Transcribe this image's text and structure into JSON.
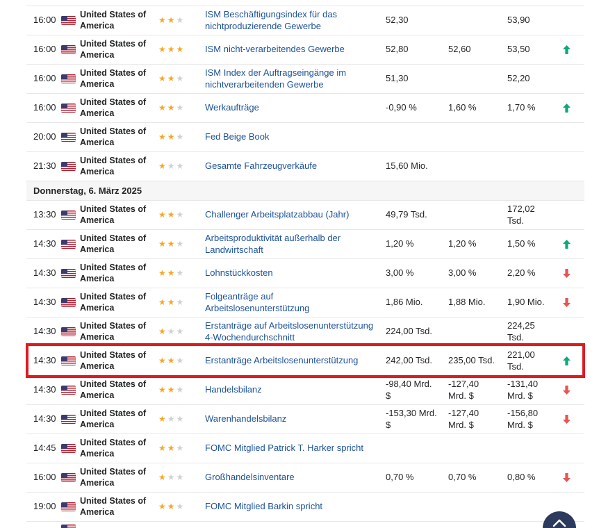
{
  "colors": {
    "text": "#232526",
    "accent_link": "#1c5298",
    "divider": "#e7e7e7",
    "section_bg": "#f6f6f6",
    "star_active": "#f5a623",
    "star_inactive": "#cdd0d4",
    "arrow_up": "#0fa779",
    "arrow_down": "#e85450",
    "highlight_border": "#dc1b21",
    "back_to_top_bg": "#2c3a5d"
  },
  "icons": {
    "star_glyph": "★",
    "flag": "us-flag-icon",
    "up_arrow": "arrow-up-icon",
    "down_arrow": "arrow-down-icon",
    "back_to_top": "chevron-up-icon"
  },
  "calendar": {
    "max_importance": 3,
    "rows": [
      {
        "kind": "event",
        "time": "16:00",
        "country": "United States of America",
        "importance": 2,
        "event": "ISM Beschäftigungsindex für das nichtproduzierende Gewerbe",
        "actual": "52,30",
        "forecast": "",
        "previous": "53,90",
        "direction": ""
      },
      {
        "kind": "event",
        "time": "16:00",
        "country": "United States of America",
        "importance": 3,
        "event": "ISM nicht-verarbeitendes Gewerbe",
        "actual": "52,80",
        "forecast": "52,60",
        "previous": "53,50",
        "direction": "up"
      },
      {
        "kind": "event",
        "time": "16:00",
        "country": "United States of America",
        "importance": 2,
        "event": "ISM Index der Auftragseingänge im nichtverarbeitenden Gewerbe",
        "actual": "51,30",
        "forecast": "",
        "previous": "52,20",
        "direction": ""
      },
      {
        "kind": "event",
        "time": "16:00",
        "country": "United States of America",
        "importance": 2,
        "event": "Werkaufträge",
        "actual": "-0,90 %",
        "forecast": "1,60 %",
        "previous": "1,70 %",
        "direction": "up"
      },
      {
        "kind": "event",
        "time": "20:00",
        "country": "United States of America",
        "importance": 2,
        "event": "Fed Beige Book",
        "actual": "",
        "forecast": "",
        "previous": "",
        "direction": ""
      },
      {
        "kind": "event",
        "time": "21:30",
        "country": "United States of America",
        "importance": 1,
        "event": "Gesamte Fahrzeugverkäufe",
        "actual": "15,60 Mio.",
        "forecast": "",
        "previous": "",
        "direction": ""
      },
      {
        "kind": "date-header",
        "label": "Donnerstag, 6. März 2025"
      },
      {
        "kind": "event",
        "time": "13:30",
        "country": "United States of America",
        "importance": 2,
        "event": "Challenger Arbeitsplatzabbau (Jahr)",
        "actual": "49,79 Tsd.",
        "forecast": "",
        "previous": "172,02 Tsd.",
        "direction": ""
      },
      {
        "kind": "event",
        "time": "14:30",
        "country": "United States of America",
        "importance": 2,
        "event": "Arbeitsproduktivität außerhalb der Landwirtschaft",
        "actual": "1,20 %",
        "forecast": "1,20 %",
        "previous": "1,50 %",
        "direction": "up"
      },
      {
        "kind": "event",
        "time": "14:30",
        "country": "United States of America",
        "importance": 2,
        "event": "Lohnstückkosten",
        "actual": "3,00 %",
        "forecast": "3,00 %",
        "previous": "2,20 %",
        "direction": "down"
      },
      {
        "kind": "event",
        "time": "14:30",
        "country": "United States of America",
        "importance": 2,
        "event": "Folgeanträge auf Arbeitslosenunterstützung",
        "actual": "1,86 Mio.",
        "forecast": "1,88 Mio.",
        "previous": "1,90 Mio.",
        "direction": "down"
      },
      {
        "kind": "event",
        "time": "14:30",
        "country": "United States of America",
        "importance": 1,
        "event": "Erstanträge auf Arbeitslosenunterstützung 4-Wochendurchschnitt",
        "actual": "224,00 Tsd.",
        "forecast": "",
        "previous": "224,25 Tsd.",
        "direction": ""
      },
      {
        "kind": "event",
        "time": "14:30",
        "country": "United States of America",
        "importance": 2,
        "event": "Erstanträge Arbeitslosenunterstützung",
        "actual": "242,00 Tsd.",
        "forecast": "235,00 Tsd.",
        "previous": "221,00 Tsd.",
        "direction": "up",
        "highlighted": true
      },
      {
        "kind": "event",
        "time": "14:30",
        "country": "United States of America",
        "importance": 2,
        "event": "Handelsbilanz",
        "actual": "-98,40 Mrd. $",
        "forecast": "-127,40 Mrd. $",
        "previous": "-131,40 Mrd. $",
        "direction": "down"
      },
      {
        "kind": "event",
        "time": "14:30",
        "country": "United States of America",
        "importance": 1,
        "event": "Warenhandelsbilanz",
        "actual": "-153,30 Mrd. $",
        "forecast": "-127,40 Mrd. $",
        "previous": "-156,80 Mrd. $",
        "direction": "down"
      },
      {
        "kind": "event",
        "time": "14:45",
        "country": "United States of America",
        "importance": 2,
        "event": "FOMC Mitglied Patrick T. Harker spricht",
        "actual": "",
        "forecast": "",
        "previous": "",
        "direction": ""
      },
      {
        "kind": "event",
        "time": "16:00",
        "country": "United States of America",
        "importance": 1,
        "event": "Großhandelsinventare",
        "actual": "0,70 %",
        "forecast": "0,70 %",
        "previous": "0,80 %",
        "direction": "down"
      },
      {
        "kind": "event",
        "time": "19:00",
        "country": "United States of America",
        "importance": 2,
        "event": "FOMC Mitglied Barkin spricht",
        "actual": "",
        "forecast": "",
        "previous": "",
        "direction": ""
      },
      {
        "kind": "partial"
      }
    ]
  }
}
